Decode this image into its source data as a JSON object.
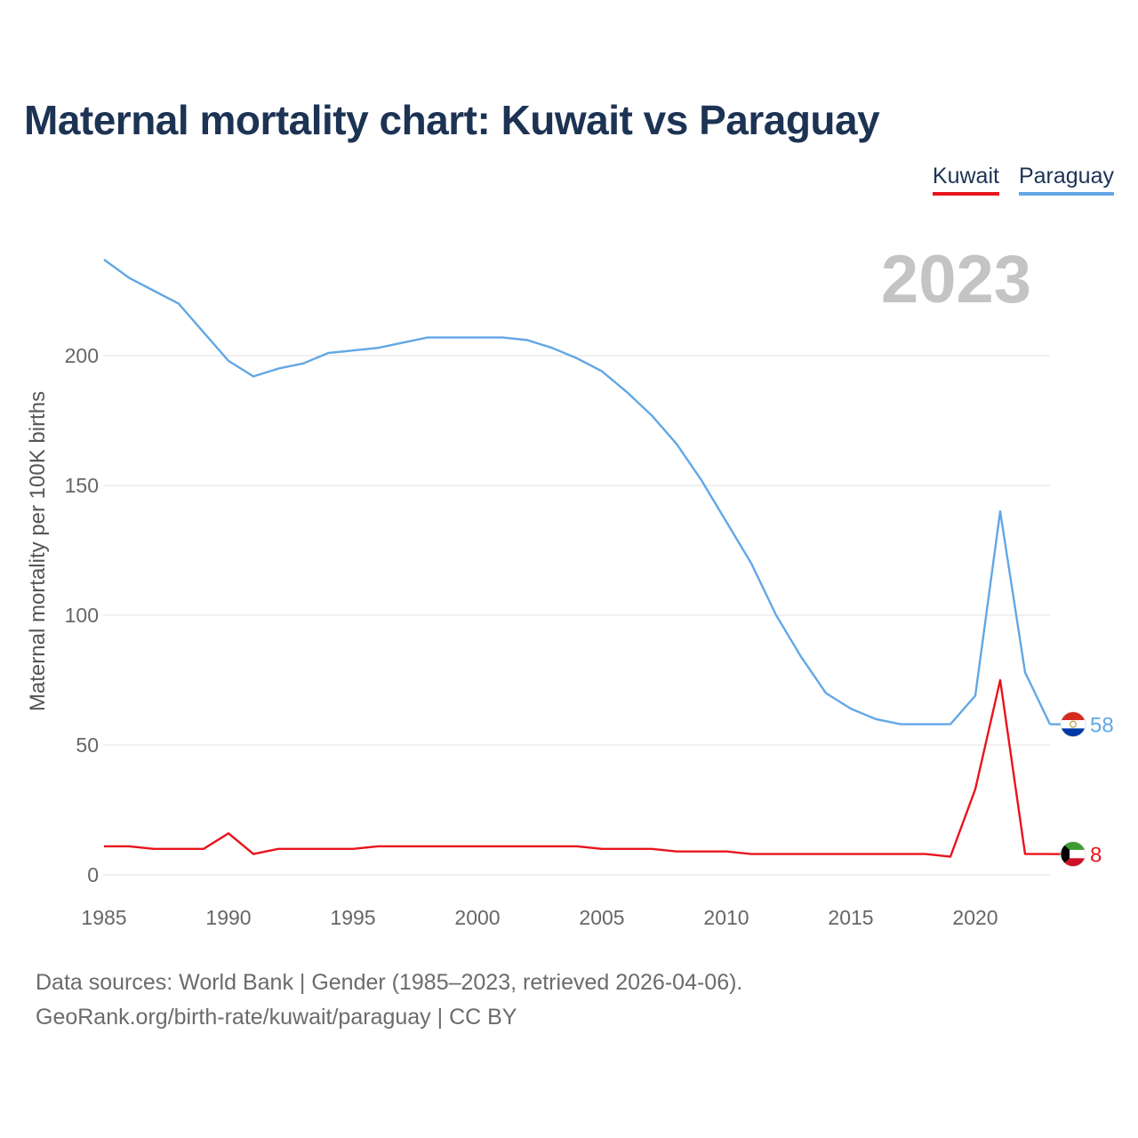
{
  "title": "Maternal mortality chart: Kuwait vs Paraguay",
  "chart_data": {
    "type": "line",
    "title": "Maternal mortality chart: Kuwait vs Paraguay",
    "ylabel": "Maternal mortality per 100K births",
    "xlabel": "",
    "year_label": "2023",
    "xlim": [
      1985,
      2023
    ],
    "ylim": [
      0,
      237
    ],
    "x_ticks": [
      1985,
      1990,
      1995,
      2000,
      2005,
      2010,
      2015,
      2020
    ],
    "y_ticks": [
      0,
      50,
      100,
      150,
      200
    ],
    "grid": true,
    "legend_position": "top-right",
    "x": [
      1985,
      1986,
      1987,
      1988,
      1989,
      1990,
      1991,
      1992,
      1993,
      1994,
      1995,
      1996,
      1997,
      1998,
      1999,
      2000,
      2001,
      2002,
      2003,
      2004,
      2005,
      2006,
      2007,
      2008,
      2009,
      2010,
      2011,
      2012,
      2013,
      2014,
      2015,
      2016,
      2017,
      2018,
      2019,
      2020,
      2021,
      2022,
      2023
    ],
    "series": [
      {
        "name": "Kuwait",
        "color": "#e8141c",
        "end_label": "8",
        "flag": "kuwait-flag-icon",
        "values": [
          11,
          11,
          10,
          10,
          10,
          16,
          8,
          10,
          10,
          10,
          10,
          11,
          11,
          11,
          11,
          11,
          11,
          11,
          11,
          11,
          10,
          10,
          10,
          9,
          9,
          9,
          8,
          8,
          8,
          8,
          8,
          8,
          8,
          8,
          7,
          33,
          75,
          8,
          8
        ]
      },
      {
        "name": "Paraguay",
        "color": "#62a7e5",
        "end_label": "58",
        "flag": "paraguay-flag-icon",
        "values": [
          237,
          230,
          225,
          220,
          209,
          198,
          192,
          195,
          197,
          201,
          202,
          203,
          205,
          207,
          207,
          207,
          207,
          206,
          203,
          199,
          194,
          186,
          177,
          166,
          152,
          136,
          120,
          100,
          84,
          70,
          64,
          60,
          58,
          58,
          58,
          69,
          140,
          78,
          58
        ]
      }
    ]
  },
  "footer": {
    "line1": "Data sources: World Bank | Gender (1985–2023, retrieved 2026-04-06).",
    "line2": "GeoRank.org/birth-rate/kuwait/paraguay | CC BY"
  }
}
